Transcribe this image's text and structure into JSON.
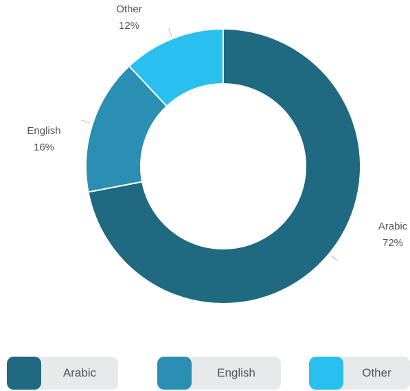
{
  "chart_data": {
    "type": "pie",
    "donut": true,
    "categories": [
      "Arabic",
      "English",
      "Other"
    ],
    "values": [
      72,
      16,
      12
    ],
    "value_labels": [
      "72%",
      "16%",
      "12%"
    ],
    "colors": [
      "#1f6a80",
      "#2a8fb2",
      "#29c0ef"
    ],
    "legend": "bottom"
  }
}
